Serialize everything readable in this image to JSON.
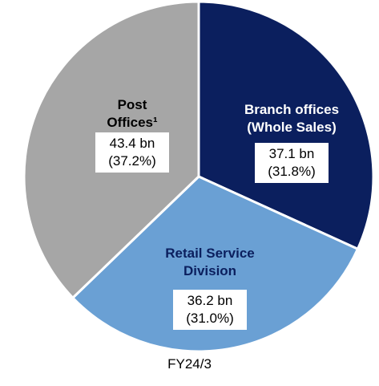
{
  "chart_data": {
    "type": "pie",
    "title": "FY24/3",
    "categories": [
      "Branch offices\n(Whole Sales)",
      "Retail Service\nDivision",
      "Post\nOffices¹"
    ],
    "values": [
      37.1,
      36.2,
      43.4
    ],
    "value_labels": [
      "37.1 bn",
      "36.2 bn",
      "43.4 bn"
    ],
    "share_labels": [
      "(31.8%)",
      "(31.0%)",
      "(37.2%)"
    ],
    "colors": [
      "#0b1f5e",
      "#6aa0d4",
      "#a6a6a6"
    ],
    "label_colors": [
      "#ffffff",
      "#0b1f5e",
      "#000000"
    ]
  }
}
